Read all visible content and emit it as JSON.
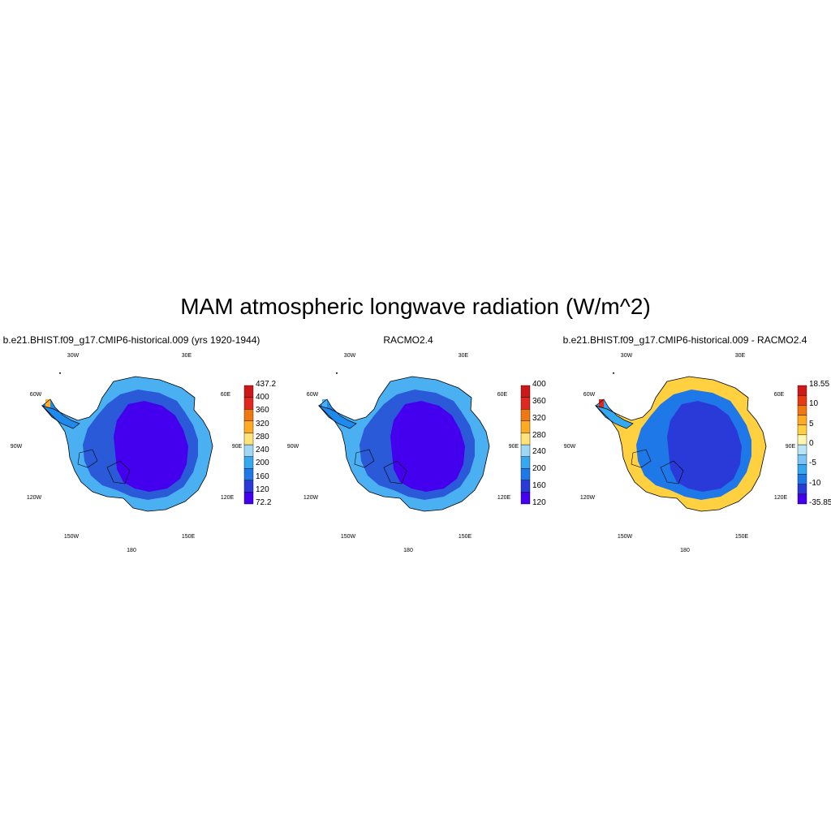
{
  "figure": {
    "title": "MAM atmospheric longwave radiation (W/m^2)"
  },
  "panels": [
    {
      "title": "b.e21.BHIST.f09_g17.CMIP6-historical.009 (yrs 1920-1944)",
      "lon_labels": [
        "30W",
        "30E",
        "60W",
        "60E",
        "90W",
        "90E",
        "120W",
        "120E",
        "150W",
        "150E",
        "180"
      ],
      "colorbar": {
        "colors": [
          "#4400ee",
          "#2a3ad8",
          "#1e78e8",
          "#35a8f0",
          "#9ed8f5",
          "#ffe27a",
          "#ffaa20",
          "#f07810",
          "#e02820",
          "#cc1818"
        ],
        "labels": [
          "72.2",
          "120",
          "160",
          "200",
          "240",
          "280",
          "320",
          "360",
          "400",
          "437.2"
        ]
      },
      "fields": {
        "interior": "#4400ee",
        "middle": "#2a5ad8",
        "outer": "#1e8aee",
        "coast": "#4ab0f2",
        "hot": "#ffb020"
      }
    },
    {
      "title": "RACMO2.4",
      "lon_labels": [
        "30W",
        "30E",
        "60W",
        "60E",
        "90W",
        "90E",
        "120W",
        "120E",
        "150W",
        "150E",
        "180"
      ],
      "colorbar": {
        "colors": [
          "#4400ee",
          "#2a3ad8",
          "#1e78e8",
          "#35a8f0",
          "#9ed8f5",
          "#ffe27a",
          "#ffaa20",
          "#f07810",
          "#e02820",
          "#cc1818"
        ],
        "labels": [
          "120",
          "160",
          "200",
          "240",
          "280",
          "320",
          "360",
          "400"
        ]
      },
      "fields": {
        "interior": "#4400ee",
        "middle": "#2a5ad8",
        "outer": "#1e8aee",
        "coast": "#4ab0f2",
        "hot": "#4ab0f2"
      }
    },
    {
      "title": "b.e21.BHIST.f09_g17.CMIP6-historical.009 - RACMO2.4",
      "lon_labels": [
        "30W",
        "30E",
        "60W",
        "60E",
        "90W",
        "90E",
        "120W",
        "120E",
        "150W",
        "150E",
        "180"
      ],
      "colorbar": {
        "colors": [
          "#4400ee",
          "#2a3ad8",
          "#1e78e8",
          "#35a8f0",
          "#7cc4f5",
          "#b8e4f8",
          "#fff6b0",
          "#ffd040",
          "#ffaa20",
          "#f07810",
          "#e83a10",
          "#d01818"
        ],
        "labels": [
          "-35.85",
          "-10",
          "-5",
          "0",
          "5",
          "10",
          "18.55"
        ]
      },
      "fields": {
        "interior": "#2a3ad8",
        "middle": "#1e78e8",
        "outer": "#35a8f0",
        "coast": "#ffd040",
        "hot": "#e02820"
      }
    }
  ]
}
